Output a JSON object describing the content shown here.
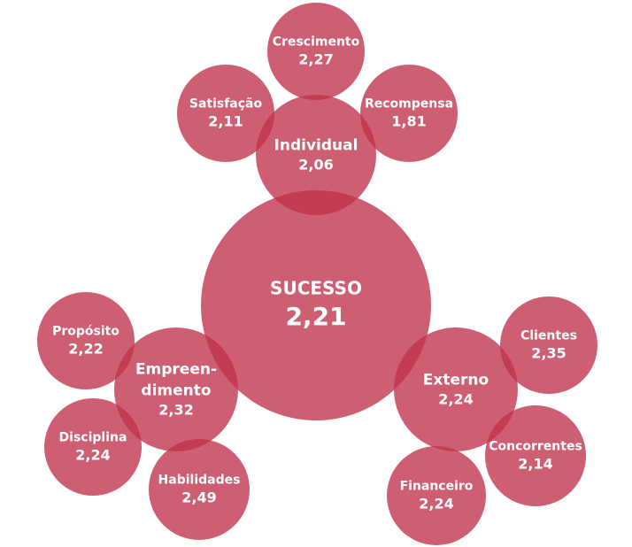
{
  "nodes": [
    {
      "lines": [
        "Crescimento"
      ],
      "value": "2,27"
    },
    {
      "lines": [
        "Satisfação"
      ],
      "value": "2,11"
    },
    {
      "lines": [
        "Recompensa"
      ],
      "value": "1,81"
    },
    {
      "lines": [
        "Individual"
      ],
      "value": "2,06"
    },
    {
      "lines": [
        "SUCESSO"
      ],
      "value": "2,21"
    },
    {
      "lines": [
        "Propósito"
      ],
      "value": "2,22"
    },
    {
      "lines": [
        "Empreen-",
        "dimento"
      ],
      "value": "2,32"
    },
    {
      "lines": [
        "Disciplina"
      ],
      "value": "2,24"
    },
    {
      "lines": [
        "Habilidades"
      ],
      "value": "2,49"
    },
    {
      "lines": [
        "Externo"
      ],
      "value": "2,24"
    },
    {
      "lines": [
        "Clientes"
      ],
      "value": "2,35"
    },
    {
      "lines": [
        "Concorrentes"
      ],
      "value": "2,14"
    },
    {
      "lines": [
        "Financeiro"
      ],
      "value": "2,24"
    }
  ]
}
